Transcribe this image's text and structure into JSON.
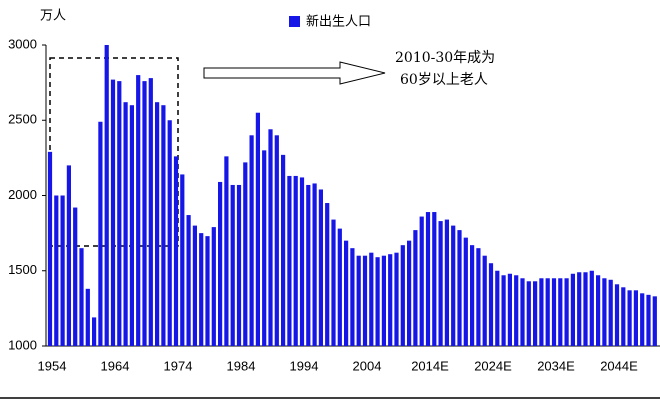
{
  "chart_data": {
    "type": "bar",
    "unit_label": "万人",
    "legend": "新出生人口",
    "annotation": [
      "2010-30年成为",
      "60岁以上老人"
    ],
    "color": "#1616e6",
    "categories": [
      "1954",
      null,
      null,
      null,
      null,
      null,
      null,
      null,
      null,
      null,
      "1964",
      null,
      null,
      null,
      null,
      null,
      null,
      null,
      null,
      null,
      "1974",
      null,
      null,
      null,
      null,
      null,
      null,
      null,
      null,
      null,
      "1984",
      null,
      null,
      null,
      null,
      null,
      null,
      null,
      null,
      null,
      "1994",
      null,
      null,
      null,
      null,
      null,
      null,
      null,
      null,
      null,
      "2004",
      null,
      null,
      null,
      null,
      null,
      null,
      null,
      null,
      null,
      "2014E",
      null,
      null,
      null,
      null,
      null,
      null,
      null,
      null,
      null,
      "2024E",
      null,
      null,
      null,
      null,
      null,
      null,
      null,
      null,
      null,
      "2034E",
      null,
      null,
      null,
      null,
      null,
      null,
      null,
      null,
      null,
      "2044E",
      null,
      null,
      null,
      null,
      null,
      null
    ],
    "values": [
      2290,
      2000,
      2000,
      2200,
      1920,
      1650,
      1380,
      1190,
      2490,
      3000,
      2770,
      2760,
      2620,
      2600,
      2800,
      2760,
      2780,
      2620,
      2600,
      2500,
      2260,
      2140,
      1870,
      1800,
      1750,
      1730,
      1790,
      2090,
      2260,
      2070,
      2070,
      2220,
      2400,
      2550,
      2300,
      2440,
      2400,
      2270,
      2130,
      2130,
      2120,
      2070,
      2080,
      2040,
      1950,
      1840,
      1780,
      1700,
      1650,
      1600,
      1600,
      1620,
      1590,
      1600,
      1610,
      1620,
      1670,
      1700,
      1770,
      1860,
      1890,
      1890,
      1830,
      1840,
      1800,
      1770,
      1720,
      1670,
      1650,
      1600,
      1550,
      1500,
      1470,
      1480,
      1470,
      1450,
      1430,
      1430,
      1450,
      1450,
      1450,
      1450,
      1450,
      1480,
      1490,
      1490,
      1500,
      1470,
      1450,
      1440,
      1410,
      1390,
      1370,
      1370,
      1350,
      1340,
      1330
    ],
    "ylim": [
      1000,
      3000
    ],
    "yticks": [
      1000,
      1500,
      2000,
      2500,
      3000
    ],
    "grid": false
  }
}
